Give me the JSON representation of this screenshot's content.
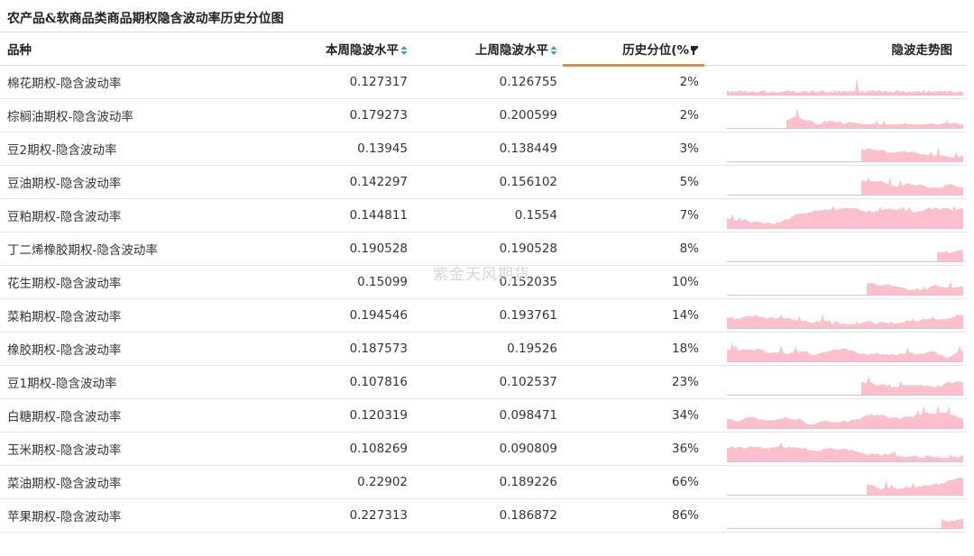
{
  "title": "农产品&软商品类商品期权隐含波动率历史分位图",
  "watermark": "紫金天风期货",
  "columns": {
    "name": "品种",
    "current": "本周隐波水平",
    "previous": "上周隐波水平",
    "percentile": "历史分位(%",
    "trend": "隐波走势图"
  },
  "icons": {
    "sort": "sort-up-down-icon",
    "filter": "filter-icon"
  },
  "colors": {
    "sparkline_fill": "#ffc0cb",
    "sparkline_baseline": "#c8c8e6",
    "active_sort_underline": "#f08a24",
    "sort_icon": "#3aa5a5"
  },
  "rows": [
    {
      "name": "棉花期权-隐含波动率",
      "current": "0.127317",
      "previous": "0.126755",
      "percentile": "2%",
      "trend": {
        "start": 0.0,
        "pattern": "cotton"
      }
    },
    {
      "name": "棕榈油期权-隐含波动率",
      "current": "0.179273",
      "previous": "0.200599",
      "percentile": "2%",
      "trend": {
        "start": 0.25,
        "pattern": "palm"
      }
    },
    {
      "name": "豆2期权-隐含波动率",
      "current": "0.13945",
      "previous": "0.138449",
      "percentile": "3%",
      "trend": {
        "start": 0.57,
        "pattern": "bean2"
      }
    },
    {
      "name": "豆油期权-隐含波动率",
      "current": "0.142297",
      "previous": "0.156102",
      "percentile": "5%",
      "trend": {
        "start": 0.57,
        "pattern": "soyoil"
      }
    },
    {
      "name": "豆粕期权-隐含波动率",
      "current": "0.144811",
      "previous": "0.1554",
      "percentile": "7%",
      "trend": {
        "start": 0.0,
        "pattern": "meal"
      }
    },
    {
      "name": "丁二烯橡胶期权-隐含波动率",
      "current": "0.190528",
      "previous": "0.190528",
      "percentile": "8%",
      "trend": {
        "start": 0.89,
        "pattern": "br"
      }
    },
    {
      "name": "花生期权-隐含波动率",
      "current": "0.15099",
      "previous": "0.152035",
      "percentile": "10%",
      "trend": {
        "start": 0.59,
        "pattern": "peanut"
      }
    },
    {
      "name": "菜粕期权-隐含波动率",
      "current": "0.194546",
      "previous": "0.193761",
      "percentile": "14%",
      "trend": {
        "start": 0.0,
        "pattern": "rapemeal"
      }
    },
    {
      "name": "橡胶期权-隐含波动率",
      "current": "0.187573",
      "previous": "0.19526",
      "percentile": "18%",
      "trend": {
        "start": 0.0,
        "pattern": "rubber"
      }
    },
    {
      "name": "豆1期权-隐含波动率",
      "current": "0.107816",
      "previous": "0.102537",
      "percentile": "23%",
      "trend": {
        "start": 0.57,
        "pattern": "bean1"
      }
    },
    {
      "name": "白糖期权-隐含波动率",
      "current": "0.120319",
      "previous": "0.098471",
      "percentile": "34%",
      "trend": {
        "start": 0.0,
        "pattern": "sugar"
      }
    },
    {
      "name": "玉米期权-隐含波动率",
      "current": "0.108269",
      "previous": "0.090809",
      "percentile": "36%",
      "trend": {
        "start": 0.0,
        "pattern": "corn"
      }
    },
    {
      "name": "菜油期权-隐含波动率",
      "current": "0.22902",
      "previous": "0.189226",
      "percentile": "66%",
      "trend": {
        "start": 0.59,
        "pattern": "rapeoil"
      }
    },
    {
      "name": "苹果期权-隐含波动率",
      "current": "0.227313",
      "previous": "0.186872",
      "percentile": "86%",
      "trend": {
        "start": 0.91,
        "pattern": "apple"
      }
    }
  ]
}
